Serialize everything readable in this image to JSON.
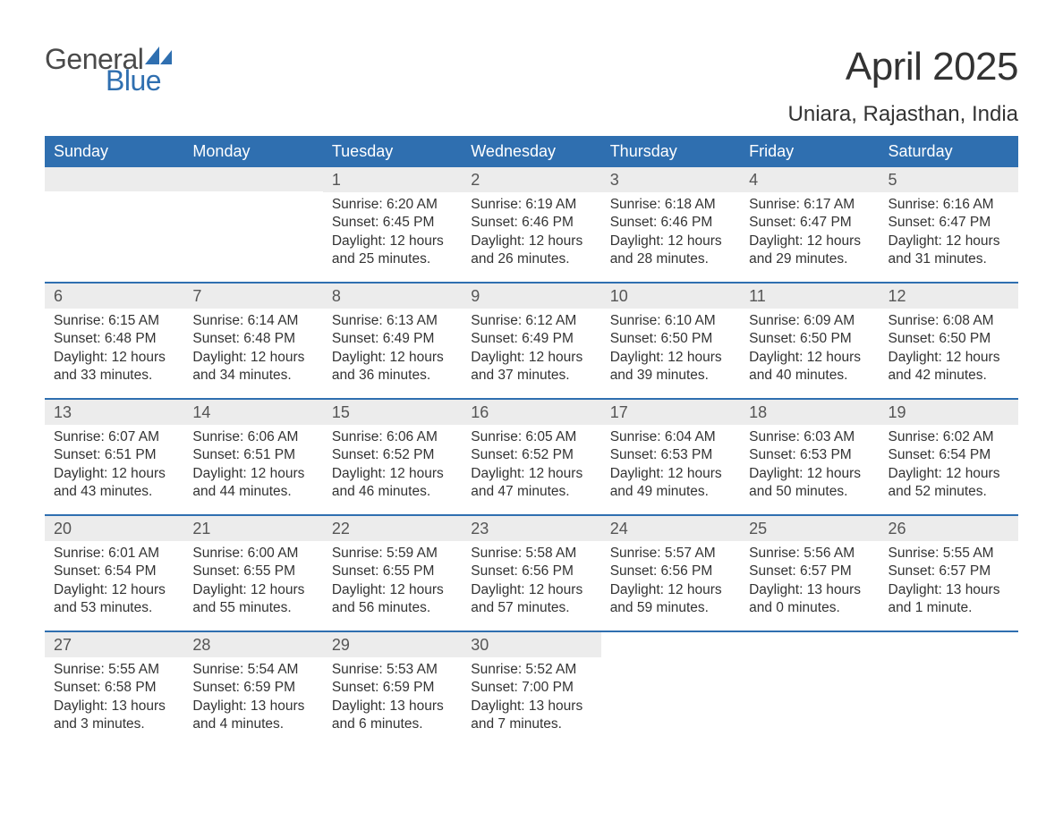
{
  "logo": {
    "text_general": "General",
    "text_blue": "Blue",
    "tri_color": "#2f6fb0"
  },
  "title": "April 2025",
  "location": "Uniara, Rajasthan, India",
  "colors": {
    "header_bg": "#2f6fb0",
    "header_text": "#ffffff",
    "daynum_bg": "#ececec",
    "body_text": "#333333",
    "rule": "#2f6fb0"
  },
  "fonts": {
    "title_size": 44,
    "location_size": 24,
    "weekday_size": 18,
    "daynum_size": 18,
    "body_size": 15.5
  },
  "weekdays": [
    "Sunday",
    "Monday",
    "Tuesday",
    "Wednesday",
    "Thursday",
    "Friday",
    "Saturday"
  ],
  "weeks": [
    [
      {
        "day": "",
        "lines": []
      },
      {
        "day": "",
        "lines": []
      },
      {
        "day": "1",
        "lines": [
          "Sunrise: 6:20 AM",
          "Sunset: 6:45 PM",
          "Daylight: 12 hours and 25 minutes."
        ]
      },
      {
        "day": "2",
        "lines": [
          "Sunrise: 6:19 AM",
          "Sunset: 6:46 PM",
          "Daylight: 12 hours and 26 minutes."
        ]
      },
      {
        "day": "3",
        "lines": [
          "Sunrise: 6:18 AM",
          "Sunset: 6:46 PM",
          "Daylight: 12 hours and 28 minutes."
        ]
      },
      {
        "day": "4",
        "lines": [
          "Sunrise: 6:17 AM",
          "Sunset: 6:47 PM",
          "Daylight: 12 hours and 29 minutes."
        ]
      },
      {
        "day": "5",
        "lines": [
          "Sunrise: 6:16 AM",
          "Sunset: 6:47 PM",
          "Daylight: 12 hours and 31 minutes."
        ]
      }
    ],
    [
      {
        "day": "6",
        "lines": [
          "Sunrise: 6:15 AM",
          "Sunset: 6:48 PM",
          "Daylight: 12 hours and 33 minutes."
        ]
      },
      {
        "day": "7",
        "lines": [
          "Sunrise: 6:14 AM",
          "Sunset: 6:48 PM",
          "Daylight: 12 hours and 34 minutes."
        ]
      },
      {
        "day": "8",
        "lines": [
          "Sunrise: 6:13 AM",
          "Sunset: 6:49 PM",
          "Daylight: 12 hours and 36 minutes."
        ]
      },
      {
        "day": "9",
        "lines": [
          "Sunrise: 6:12 AM",
          "Sunset: 6:49 PM",
          "Daylight: 12 hours and 37 minutes."
        ]
      },
      {
        "day": "10",
        "lines": [
          "Sunrise: 6:10 AM",
          "Sunset: 6:50 PM",
          "Daylight: 12 hours and 39 minutes."
        ]
      },
      {
        "day": "11",
        "lines": [
          "Sunrise: 6:09 AM",
          "Sunset: 6:50 PM",
          "Daylight: 12 hours and 40 minutes."
        ]
      },
      {
        "day": "12",
        "lines": [
          "Sunrise: 6:08 AM",
          "Sunset: 6:50 PM",
          "Daylight: 12 hours and 42 minutes."
        ]
      }
    ],
    [
      {
        "day": "13",
        "lines": [
          "Sunrise: 6:07 AM",
          "Sunset: 6:51 PM",
          "Daylight: 12 hours and 43 minutes."
        ]
      },
      {
        "day": "14",
        "lines": [
          "Sunrise: 6:06 AM",
          "Sunset: 6:51 PM",
          "Daylight: 12 hours and 44 minutes."
        ]
      },
      {
        "day": "15",
        "lines": [
          "Sunrise: 6:06 AM",
          "Sunset: 6:52 PM",
          "Daylight: 12 hours and 46 minutes."
        ]
      },
      {
        "day": "16",
        "lines": [
          "Sunrise: 6:05 AM",
          "Sunset: 6:52 PM",
          "Daylight: 12 hours and 47 minutes."
        ]
      },
      {
        "day": "17",
        "lines": [
          "Sunrise: 6:04 AM",
          "Sunset: 6:53 PM",
          "Daylight: 12 hours and 49 minutes."
        ]
      },
      {
        "day": "18",
        "lines": [
          "Sunrise: 6:03 AM",
          "Sunset: 6:53 PM",
          "Daylight: 12 hours and 50 minutes."
        ]
      },
      {
        "day": "19",
        "lines": [
          "Sunrise: 6:02 AM",
          "Sunset: 6:54 PM",
          "Daylight: 12 hours and 52 minutes."
        ]
      }
    ],
    [
      {
        "day": "20",
        "lines": [
          "Sunrise: 6:01 AM",
          "Sunset: 6:54 PM",
          "Daylight: 12 hours and 53 minutes."
        ]
      },
      {
        "day": "21",
        "lines": [
          "Sunrise: 6:00 AM",
          "Sunset: 6:55 PM",
          "Daylight: 12 hours and 55 minutes."
        ]
      },
      {
        "day": "22",
        "lines": [
          "Sunrise: 5:59 AM",
          "Sunset: 6:55 PM",
          "Daylight: 12 hours and 56 minutes."
        ]
      },
      {
        "day": "23",
        "lines": [
          "Sunrise: 5:58 AM",
          "Sunset: 6:56 PM",
          "Daylight: 12 hours and 57 minutes."
        ]
      },
      {
        "day": "24",
        "lines": [
          "Sunrise: 5:57 AM",
          "Sunset: 6:56 PM",
          "Daylight: 12 hours and 59 minutes."
        ]
      },
      {
        "day": "25",
        "lines": [
          "Sunrise: 5:56 AM",
          "Sunset: 6:57 PM",
          "Daylight: 13 hours and 0 minutes."
        ]
      },
      {
        "day": "26",
        "lines": [
          "Sunrise: 5:55 AM",
          "Sunset: 6:57 PM",
          "Daylight: 13 hours and 1 minute."
        ]
      }
    ],
    [
      {
        "day": "27",
        "lines": [
          "Sunrise: 5:55 AM",
          "Sunset: 6:58 PM",
          "Daylight: 13 hours and 3 minutes."
        ]
      },
      {
        "day": "28",
        "lines": [
          "Sunrise: 5:54 AM",
          "Sunset: 6:59 PM",
          "Daylight: 13 hours and 4 minutes."
        ]
      },
      {
        "day": "29",
        "lines": [
          "Sunrise: 5:53 AM",
          "Sunset: 6:59 PM",
          "Daylight: 13 hours and 6 minutes."
        ]
      },
      {
        "day": "30",
        "lines": [
          "Sunrise: 5:52 AM",
          "Sunset: 7:00 PM",
          "Daylight: 13 hours and 7 minutes."
        ]
      },
      {
        "day": "",
        "lines": []
      },
      {
        "day": "",
        "lines": []
      },
      {
        "day": "",
        "lines": []
      }
    ]
  ]
}
